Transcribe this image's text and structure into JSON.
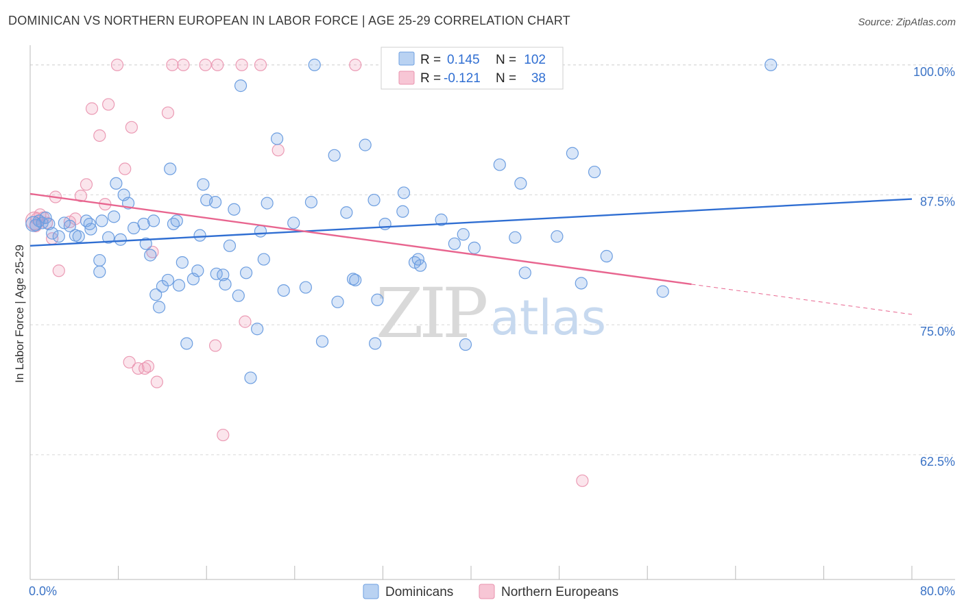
{
  "title": "DOMINICAN VS NORTHERN EUROPEAN IN LABOR FORCE | AGE 25-29 CORRELATION CHART",
  "source": "Source: ZipAtlas.com",
  "watermark": {
    "zip": "ZIP",
    "atlas": "atlas"
  },
  "legend": {
    "r_label": "R =",
    "n_label": "N =",
    "rows": [
      {
        "r": "0.145",
        "n": "102",
        "fill": "#b9d2f2",
        "stroke": "#6d9fe0"
      },
      {
        "r": "-0.121",
        "n": "38",
        "fill": "#f7c6d5",
        "stroke": "#e991ad"
      }
    ]
  },
  "colors": {
    "blue": "#2f6ed2",
    "pink": "#e8658f",
    "blue_fill": "rgba(120,165,230,0.28)",
    "blue_stroke": "#6b9de0",
    "pink_fill": "rgba(240,160,185,0.28)",
    "pink_stroke": "#eb9ab4",
    "grid": "#d8d8d8"
  },
  "chart_data": {
    "type": "scatter",
    "title": "DOMINICAN VS NORTHERN EUROPEAN IN LABOR FORCE | AGE 25-29 CORRELATION CHART",
    "xlabel": "",
    "ylabel": "In Labor Force | Age 25-29",
    "xlim": [
      0,
      80
    ],
    "ylim": [
      50.5,
      101.5
    ],
    "x_tick_labels": [
      "0.0%",
      "80.0%"
    ],
    "y_ticks": [
      62.5,
      75.0,
      87.5,
      100.0
    ],
    "y_tick_labels": [
      "62.5%",
      "75.0%",
      "87.5%",
      "100.0%"
    ],
    "grid": "horizontal dashed",
    "series": [
      {
        "name": "Dominicans",
        "color": "#6b9de0",
        "points": [
          [
            0.5,
            84.6
          ],
          [
            0.8,
            85.0
          ],
          [
            1.1,
            84.8
          ],
          [
            1.4,
            85.3
          ],
          [
            1.7,
            84.7
          ],
          [
            2.0,
            83.8
          ],
          [
            2.6,
            83.5
          ],
          [
            3.1,
            84.8
          ],
          [
            3.6,
            84.5
          ],
          [
            4.1,
            83.6
          ],
          [
            4.4,
            83.5
          ],
          [
            5.1,
            85.0
          ],
          [
            5.4,
            84.7
          ],
          [
            5.5,
            84.2
          ],
          [
            6.5,
            85.0
          ],
          [
            7.6,
            85.4
          ],
          [
            6.3,
            81.2
          ],
          [
            6.3,
            80.1
          ],
          [
            7.1,
            83.4
          ],
          [
            8.2,
            83.2
          ],
          [
            8.5,
            87.5
          ],
          [
            8.9,
            86.7
          ],
          [
            7.8,
            88.6
          ],
          [
            9.4,
            84.3
          ],
          [
            10.3,
            84.7
          ],
          [
            10.5,
            82.8
          ],
          [
            10.9,
            81.7
          ],
          [
            11.2,
            85.0
          ],
          [
            11.4,
            77.9
          ],
          [
            11.7,
            76.7
          ],
          [
            12.0,
            78.7
          ],
          [
            12.5,
            79.3
          ],
          [
            12.7,
            90.0
          ],
          [
            13.0,
            84.7
          ],
          [
            13.3,
            85.0
          ],
          [
            13.5,
            78.8
          ],
          [
            13.8,
            81.0
          ],
          [
            14.2,
            73.2
          ],
          [
            14.8,
            79.4
          ],
          [
            15.2,
            80.2
          ],
          [
            15.4,
            83.6
          ],
          [
            15.7,
            88.5
          ],
          [
            16.0,
            87.0
          ],
          [
            16.8,
            86.8
          ],
          [
            16.9,
            79.9
          ],
          [
            17.5,
            79.8
          ],
          [
            17.7,
            78.9
          ],
          [
            18.1,
            82.6
          ],
          [
            18.5,
            86.1
          ],
          [
            18.9,
            77.8
          ],
          [
            19.1,
            98.0
          ],
          [
            19.6,
            80.0
          ],
          [
            20.0,
            69.9
          ],
          [
            20.6,
            74.6
          ],
          [
            20.9,
            84.0
          ],
          [
            21.2,
            81.3
          ],
          [
            21.5,
            86.7
          ],
          [
            22.4,
            92.9
          ],
          [
            23.0,
            78.3
          ],
          [
            23.9,
            84.8
          ],
          [
            25.0,
            78.6
          ],
          [
            25.5,
            86.8
          ],
          [
            25.8,
            100.0
          ],
          [
            26.5,
            73.4
          ],
          [
            27.6,
            91.3
          ],
          [
            27.9,
            77.2
          ],
          [
            28.7,
            85.8
          ],
          [
            29.3,
            79.4
          ],
          [
            29.5,
            79.3
          ],
          [
            30.4,
            92.3
          ],
          [
            31.2,
            87.0
          ],
          [
            31.3,
            73.2
          ],
          [
            31.5,
            77.4
          ],
          [
            32.2,
            84.7
          ],
          [
            33.8,
            85.9
          ],
          [
            33.9,
            87.7
          ],
          [
            34.9,
            81.0
          ],
          [
            35.2,
            81.3
          ],
          [
            35.4,
            80.7
          ],
          [
            37.3,
            85.1
          ],
          [
            38.5,
            82.8
          ],
          [
            39.3,
            83.7
          ],
          [
            39.5,
            73.1
          ],
          [
            40.3,
            82.4
          ],
          [
            42.6,
            90.4
          ],
          [
            44.0,
            83.4
          ],
          [
            44.5,
            88.6
          ],
          [
            44.9,
            80.0
          ],
          [
            47.8,
            83.5
          ],
          [
            49.2,
            91.5
          ],
          [
            50.0,
            79.0
          ],
          [
            51.2,
            89.7
          ],
          [
            52.3,
            81.6
          ],
          [
            57.4,
            78.2
          ],
          [
            67.2,
            100.0
          ],
          [
            32.5,
            100.0
          ]
        ]
      },
      {
        "name": "Northern Europeans",
        "color": "#eb9ab4",
        "points": [
          [
            0.5,
            84.5
          ],
          [
            0.6,
            85.2
          ],
          [
            0.9,
            85.6
          ],
          [
            1.2,
            85.3
          ],
          [
            1.5,
            84.8
          ],
          [
            2.0,
            83.3
          ],
          [
            2.3,
            87.3
          ],
          [
            2.6,
            80.2
          ],
          [
            3.6,
            84.9
          ],
          [
            4.1,
            85.2
          ],
          [
            4.6,
            87.4
          ],
          [
            5.1,
            88.5
          ],
          [
            5.6,
            95.8
          ],
          [
            6.3,
            93.2
          ],
          [
            6.8,
            86.6
          ],
          [
            7.1,
            96.2
          ],
          [
            7.9,
            100.0
          ],
          [
            8.6,
            90.0
          ],
          [
            9.0,
            71.4
          ],
          [
            9.2,
            94.0
          ],
          [
            9.8,
            70.8
          ],
          [
            10.4,
            70.8
          ],
          [
            10.7,
            71.0
          ],
          [
            11.1,
            82.0
          ],
          [
            11.5,
            69.5
          ],
          [
            12.5,
            95.4
          ],
          [
            12.9,
            100.0
          ],
          [
            13.9,
            100.0
          ],
          [
            15.9,
            100.0
          ],
          [
            16.8,
            73.0
          ],
          [
            17.0,
            100.0
          ],
          [
            17.5,
            64.4
          ],
          [
            19.2,
            100.0
          ],
          [
            19.5,
            75.3
          ],
          [
            20.9,
            100.0
          ],
          [
            22.5,
            91.8
          ],
          [
            29.5,
            100.0
          ],
          [
            50.1,
            60.0
          ]
        ]
      }
    ],
    "trendlines": [
      {
        "series": "Dominicans",
        "x": [
          0,
          80
        ],
        "y": [
          82.6,
          87.1
        ],
        "style": "solid"
      },
      {
        "series": "Northern Europeans",
        "x": [
          0,
          60
        ],
        "y": [
          87.6,
          78.9
        ],
        "style": "solid"
      },
      {
        "series": "Northern Europeans",
        "x": [
          60,
          80
        ],
        "y": [
          78.9,
          76.0
        ],
        "style": "dashed"
      }
    ]
  },
  "bottom_legend": [
    {
      "label": "Dominicans",
      "fill": "#b9d2f2",
      "stroke": "#6d9fe0"
    },
    {
      "label": "Northern Europeans",
      "fill": "#f7c6d5",
      "stroke": "#e991ad"
    }
  ]
}
